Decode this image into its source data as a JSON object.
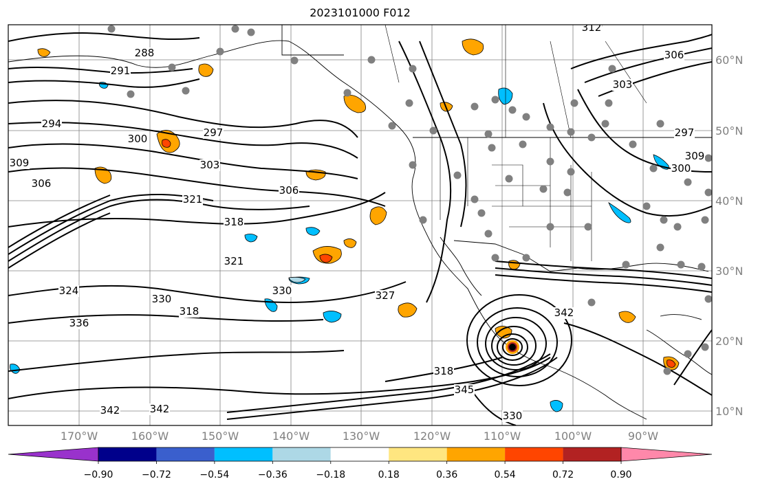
{
  "title": "2023101000 F012",
  "map": {
    "lat_labels": [
      "60°N",
      "50°N",
      "40°N",
      "30°N",
      "20°N",
      "10°N"
    ],
    "lon_labels": [
      "170°W",
      "160°W",
      "150°W",
      "140°W",
      "130°W",
      "120°W",
      "110°W",
      "100°W",
      "90°W"
    ],
    "contour_labels": [
      "288",
      "291",
      "294",
      "297",
      "300",
      "303",
      "306",
      "306",
      "309",
      "312",
      "318",
      "321",
      "321",
      "324",
      "327",
      "330",
      "330",
      "318",
      "336",
      "342",
      "342",
      "345",
      "318",
      "330",
      "342",
      "309",
      "306",
      "303",
      "300",
      "297"
    ],
    "land_color": "#000000",
    "grid_color": "#808080",
    "station_color": "#808080"
  },
  "colorbar": {
    "tick_labels": [
      "−0.90",
      "−0.72",
      "−0.54",
      "−0.36",
      "−0.18",
      "0.18",
      "0.36",
      "0.54",
      "0.72",
      "0.90"
    ],
    "colors": [
      "#9932CC",
      "#00008B",
      "#3A5FCD",
      "#00BFFF",
      "#ADD8E6",
      "#FFFFFF",
      "#FFE680",
      "#FFA500",
      "#FF4500",
      "#B22222",
      "#FF88AA"
    ]
  }
}
